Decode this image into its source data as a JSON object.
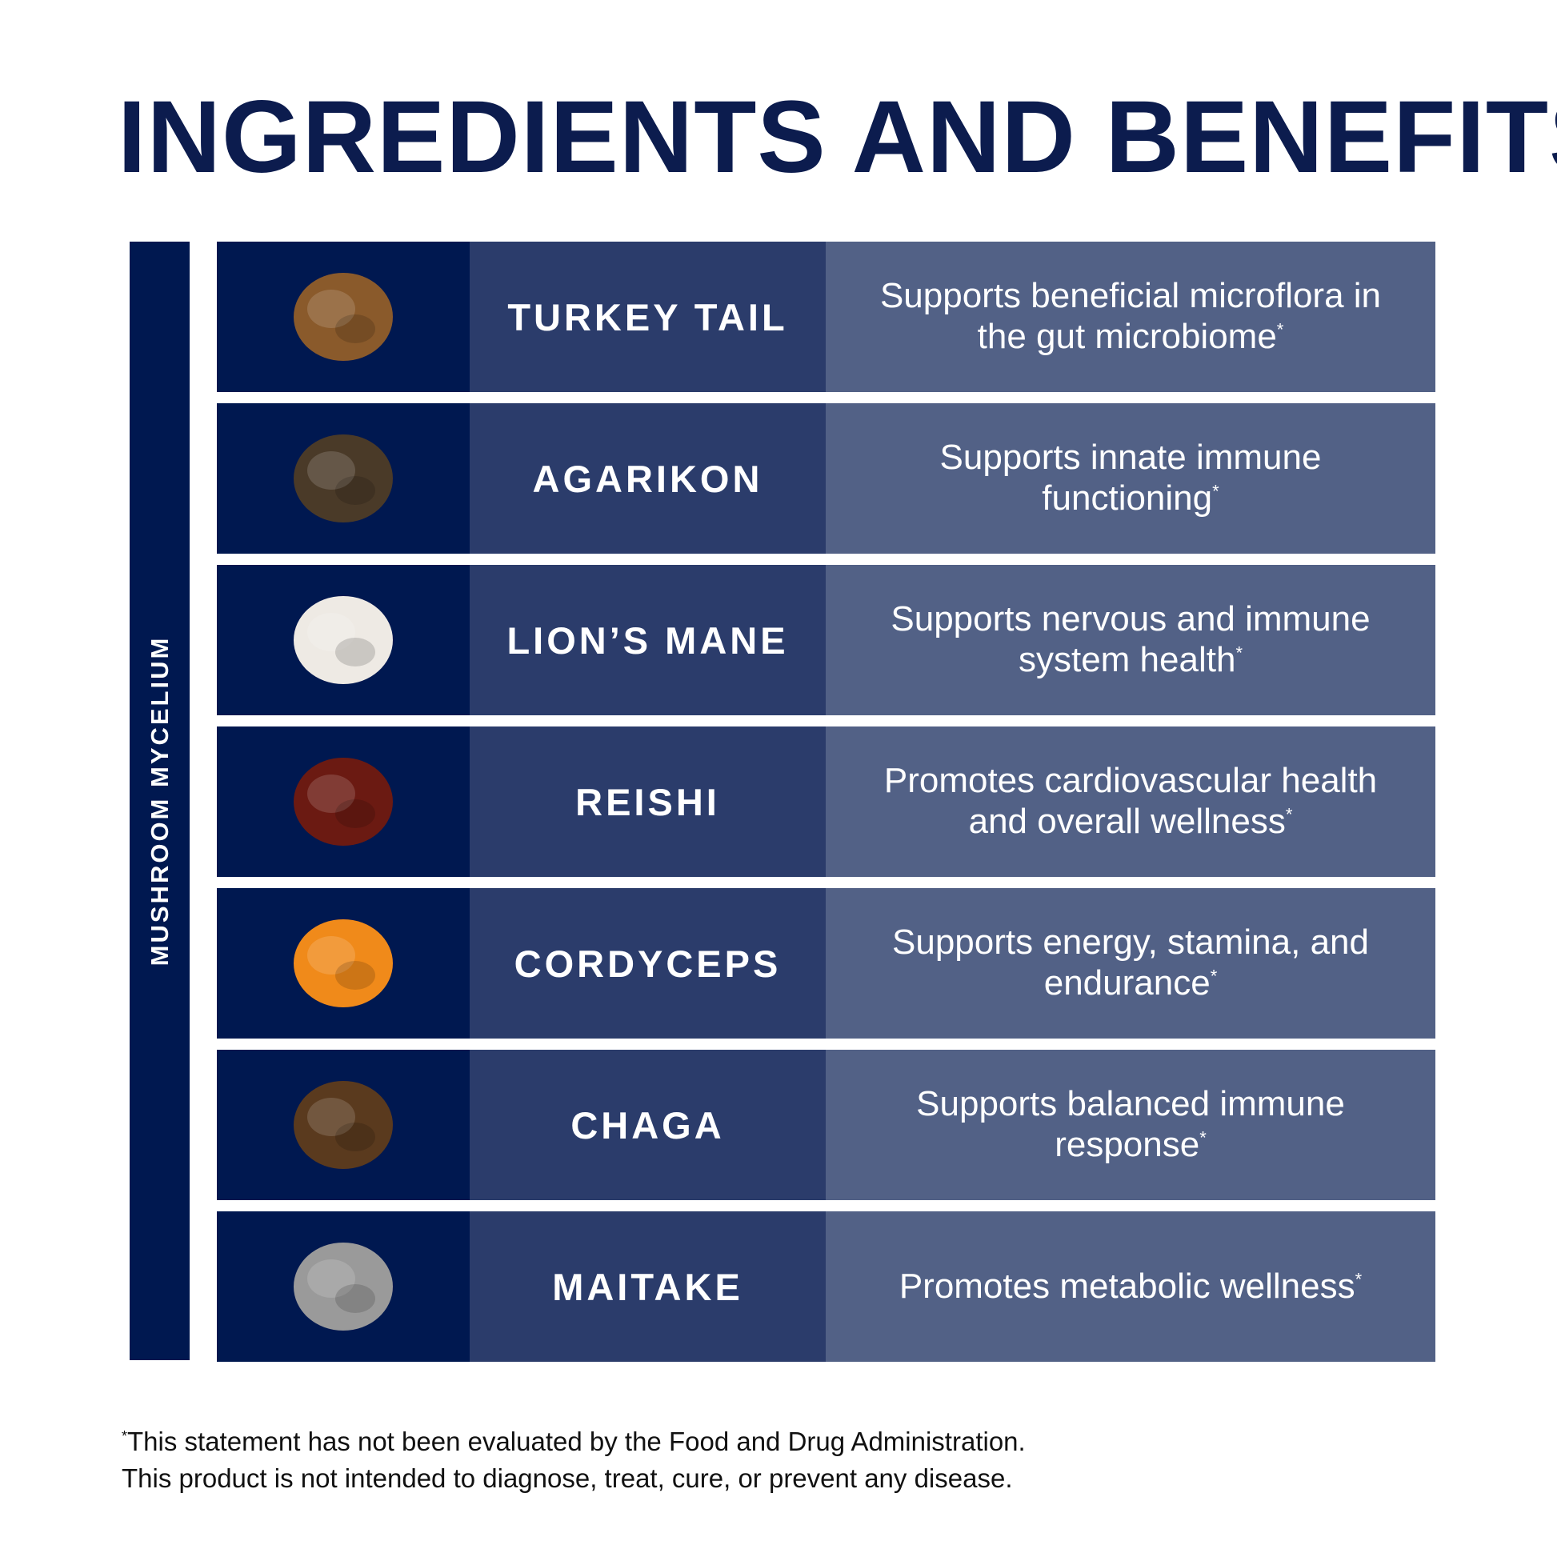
{
  "title": "INGREDIENTS AND BENEFITS",
  "title_mark": "*",
  "sidebar_label": "MUSHROOM MYCELIUM",
  "rows": [
    {
      "name": "TURKEY TAIL",
      "benefit": "Supports beneficial microflora in the gut microbiome",
      "mark": "*",
      "icon": "turkey-tail-image",
      "color": "#8a5a2b"
    },
    {
      "name": "AGARIKON",
      "benefit": "Supports innate immune functioning",
      "mark": "*",
      "icon": "agarikon-image",
      "color": "#4a3a28"
    },
    {
      "name": "LION’S MANE",
      "benefit": "Supports nervous and immune system health",
      "mark": "*",
      "icon": "lions-mane-image",
      "color": "#eeeae4"
    },
    {
      "name": "REISHI",
      "benefit": "Promotes cardiovascular health and overall wellness",
      "mark": "*",
      "icon": "reishi-image",
      "color": "#6b1a12"
    },
    {
      "name": "CORDYCEPS",
      "benefit": "Supports energy, stamina, and endurance",
      "mark": "*",
      "icon": "cordyceps-image",
      "color": "#f08a1a"
    },
    {
      "name": "CHAGA",
      "benefit": "Supports balanced immune response",
      "mark": "*",
      "icon": "chaga-image",
      "color": "#5a3a1e"
    },
    {
      "name": "MAITAKE",
      "benefit": "Promotes metabolic wellness",
      "mark": "*",
      "icon": "maitake-image",
      "color": "#9a9a9a"
    }
  ],
  "footnote": {
    "mark": "*",
    "line1": "This statement has not been evaluated by the Food and Drug Administration.",
    "line2": "This product is not intended to diagnose, treat, cure, or prevent any disease."
  },
  "colors": {
    "navy": "#001850",
    "name_bg": "#2b3c6b",
    "benefit_bg": "#526186"
  }
}
